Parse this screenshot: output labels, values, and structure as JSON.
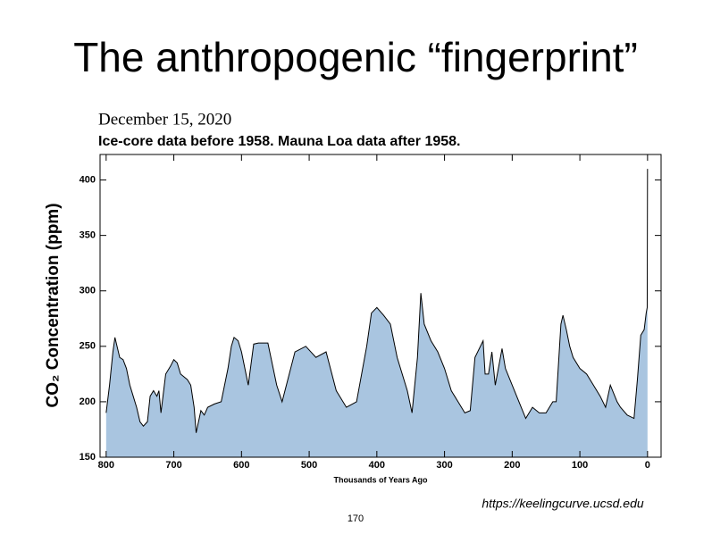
{
  "slide_title": "The anthropogenic “fingerprint”",
  "source": "https://keelingcurve.ucsd.edu",
  "page_number": "170",
  "chart_data": {
    "type": "area",
    "date": "December 15, 2020",
    "subtitle": "Ice-core data before 1958. Mauna Loa data after 1958.",
    "y_label": "CO₂ Concentration (ppm)",
    "x_label": "Thousands of Years Ago",
    "x": [
      800,
      795,
      790,
      787,
      780,
      775,
      770,
      765,
      760,
      755,
      750,
      745,
      739,
      735,
      730,
      725,
      722,
      719,
      712,
      705,
      700,
      695,
      690,
      680,
      675,
      670,
      667,
      660,
      655,
      650,
      640,
      630,
      620,
      615,
      611,
      605,
      600,
      590,
      582,
      575,
      561,
      548,
      540,
      521,
      505,
      490,
      475,
      460,
      445,
      430,
      415,
      408,
      400,
      390,
      380,
      370,
      355,
      348,
      340,
      335,
      330,
      320,
      310,
      300,
      290,
      280,
      270,
      262,
      255,
      243,
      240,
      235,
      230,
      225,
      215,
      210,
      200,
      190,
      180,
      170,
      160,
      150,
      140,
      135,
      128,
      125,
      120,
      115,
      110,
      100,
      90,
      80,
      70,
      62,
      55,
      45,
      40,
      30,
      20,
      15,
      10,
      5,
      2,
      0.5,
      0.05
    ],
    "values": [
      190,
      215,
      245,
      258,
      240,
      238,
      230,
      215,
      205,
      195,
      182,
      178,
      182,
      205,
      210,
      205,
      210,
      190,
      225,
      232,
      238,
      235,
      225,
      220,
      215,
      195,
      172,
      192,
      188,
      195,
      198,
      200,
      230,
      250,
      258,
      255,
      245,
      215,
      252,
      253,
      253,
      215,
      200,
      245,
      250,
      240,
      245,
      210,
      195,
      200,
      250,
      280,
      285,
      278,
      270,
      240,
      210,
      190,
      240,
      298,
      270,
      255,
      245,
      230,
      210,
      200,
      190,
      192,
      240,
      255,
      225,
      225,
      245,
      215,
      248,
      230,
      215,
      200,
      185,
      195,
      190,
      190,
      200,
      200,
      270,
      278,
      265,
      250,
      240,
      230,
      225,
      215,
      205,
      195,
      215,
      200,
      195,
      188,
      185,
      220,
      260,
      265,
      280,
      285,
      410
    ],
    "color": "#a9c5e0",
    "line_color": "#000000",
    "xlim": [
      809,
      -20
    ],
    "ylim": [
      150,
      423
    ],
    "xticks": [
      800,
      700,
      600,
      500,
      400,
      300,
      200,
      100,
      0
    ],
    "yticks": [
      150,
      200,
      250,
      300,
      350,
      400
    ]
  }
}
